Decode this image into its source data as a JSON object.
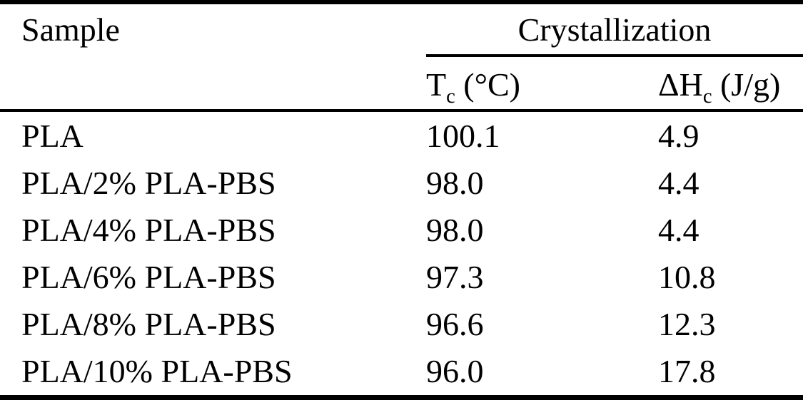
{
  "page": {
    "background": "#ffffff",
    "text_color": "#000000"
  },
  "table": {
    "sample_header": "Sample",
    "spanner_header": "Crystallization",
    "col_tc": {
      "base": "T",
      "sub": "c",
      "unit": " (°C)"
    },
    "col_dhc": {
      "base": "ΔH",
      "sub": "c",
      "unit": " (J/g)"
    },
    "rows": [
      {
        "sample": "PLA",
        "tc": "100.1",
        "dhc": "4.9"
      },
      {
        "sample": "PLA/2% PLA-PBS",
        "tc": "98.0",
        "dhc": "4.4"
      },
      {
        "sample": "PLA/4% PLA-PBS",
        "tc": "98.0",
        "dhc": "4.4"
      },
      {
        "sample": "PLA/6% PLA-PBS",
        "tc": "97.3",
        "dhc": "10.8"
      },
      {
        "sample": "PLA/8% PLA-PBS",
        "tc": "96.6",
        "dhc": "12.3"
      },
      {
        "sample": "PLA/10% PLA-PBS",
        "tc": "96.0",
        "dhc": "17.8"
      }
    ]
  },
  "chart_data": {
    "type": "table",
    "title": "Crystallization",
    "columns": [
      "Sample",
      "Tc (°C)",
      "ΔHc (J/g)"
    ],
    "rows": [
      [
        "PLA",
        100.1,
        4.9
      ],
      [
        "PLA/2% PLA-PBS",
        98.0,
        4.4
      ],
      [
        "PLA/4% PLA-PBS",
        98.0,
        4.4
      ],
      [
        "PLA/6% PLA-PBS",
        97.3,
        10.8
      ],
      [
        "PLA/8% PLA-PBS",
        96.6,
        12.3
      ],
      [
        "PLA/10% PLA-PBS",
        96.0,
        17.8
      ]
    ]
  }
}
